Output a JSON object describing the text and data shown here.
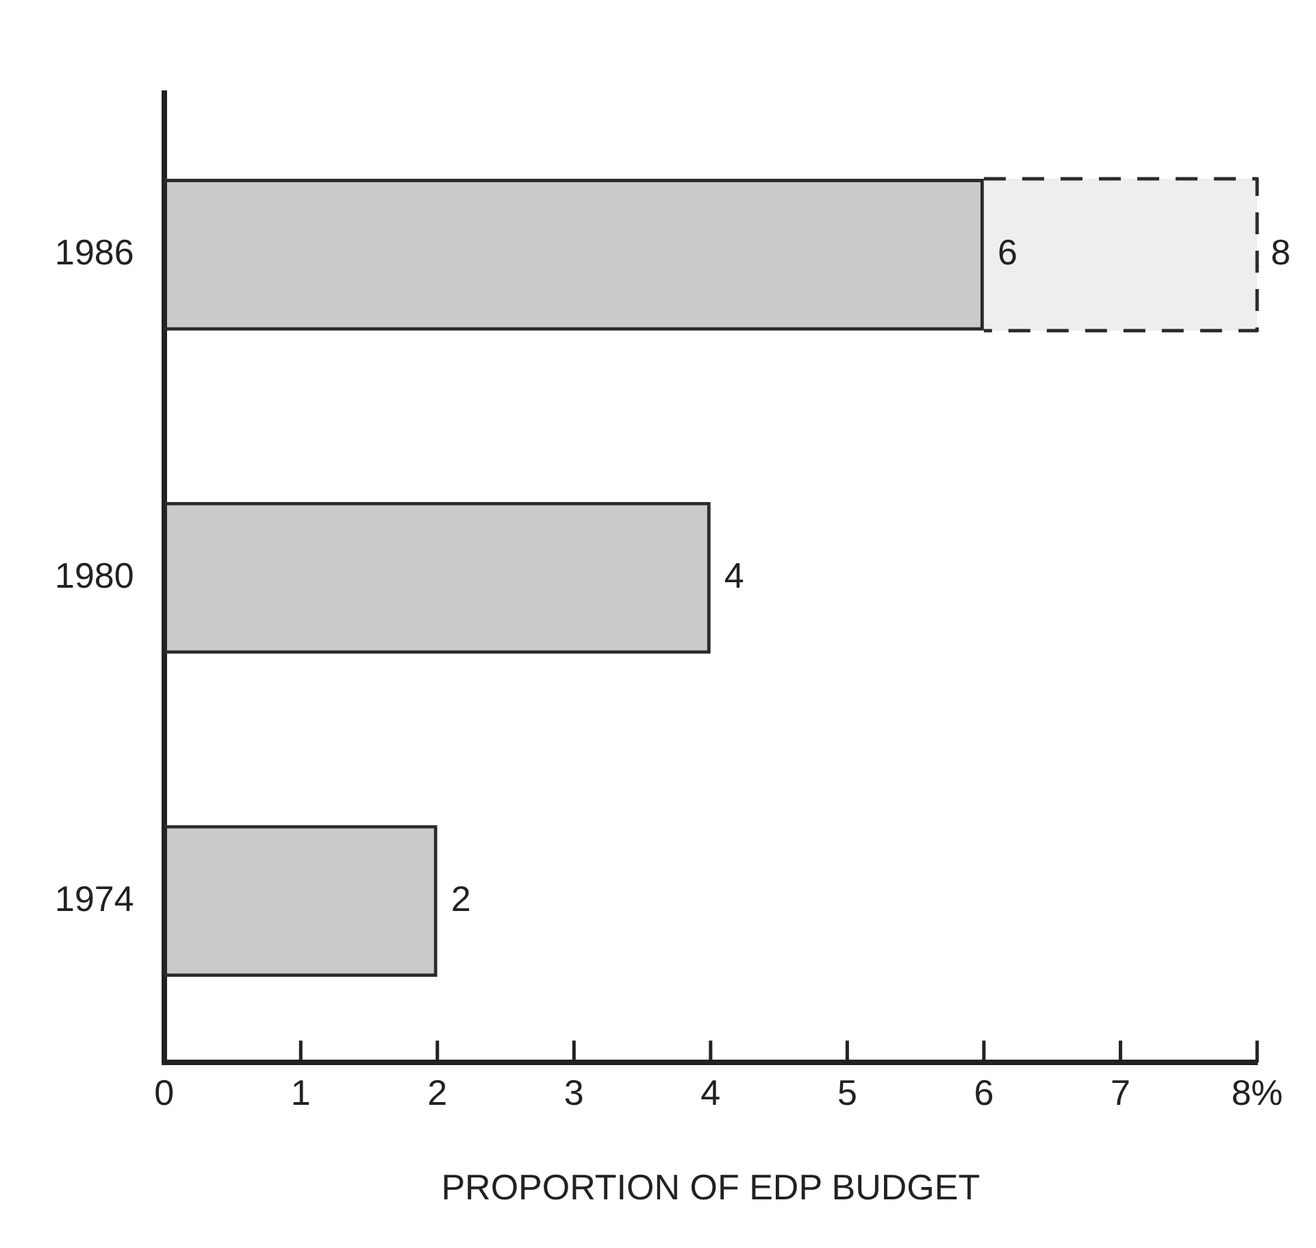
{
  "chart_data": {
    "type": "bar",
    "orientation": "horizontal",
    "stacked": true,
    "xlabel": "PROPORTION OF EDP BUDGET",
    "categories": [
      "1986",
      "1980",
      "1974"
    ],
    "series": [
      {
        "color": "#2b2b2b",
        "line_style": "solid",
        "values": [
          6,
          4,
          2
        ],
        "value_labels": [
          "6",
          "4",
          "2"
        ]
      },
      {
        "color": "#2b2b2b",
        "line_style": "dashed",
        "values": [
          2,
          null,
          null
        ]
      }
    ],
    "totals": [
      "8",
      null,
      null
    ],
    "xlim": [
      0,
      8
    ],
    "xticks": [
      0,
      1,
      2,
      3,
      4,
      5,
      6,
      7,
      {
        "value": 8,
        "label": "8%"
      }
    ],
    "grid": false,
    "legend": false
  }
}
